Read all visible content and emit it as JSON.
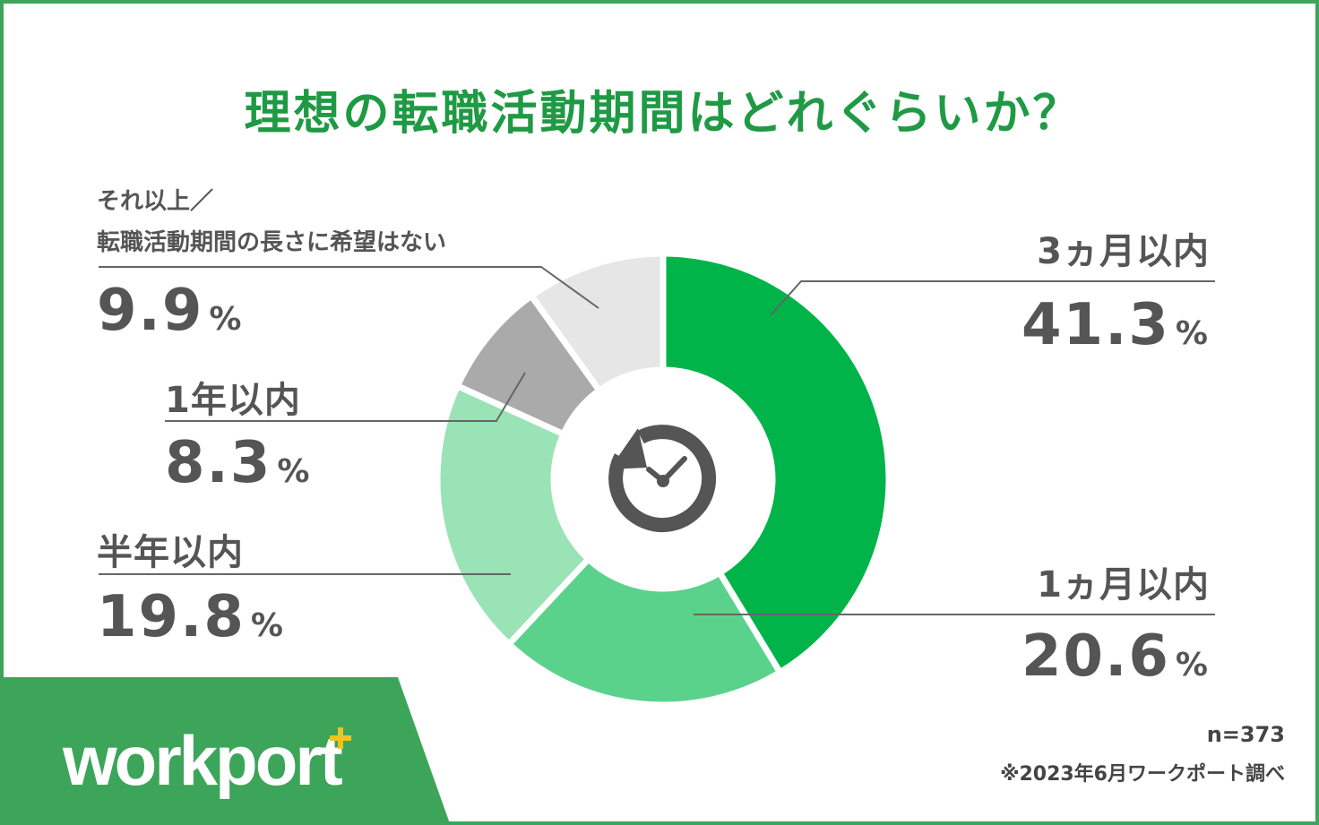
{
  "title": "理想の転職活動期間はどれぐらいか？",
  "chart_data": {
    "type": "pie",
    "variant": "donut",
    "title": "理想の転職活動期間はどれぐらいか？",
    "categories": [
      "3ヵ月以内",
      "1ヵ月以内",
      "半年以内",
      "1年以内",
      "それ以上／転職活動期間の長さに希望はない"
    ],
    "values": [
      41.3,
      20.6,
      19.8,
      8.3,
      9.9
    ],
    "unit": "%",
    "colors": [
      "#00b44a",
      "#5ad28c",
      "#9ae3b6",
      "#aaaaaa",
      "#e6e6e6"
    ],
    "center_icon": "clock-with-arrow-icon",
    "legend": "none"
  },
  "labels": {
    "s0": {
      "head": "3ヵ月以内",
      "value": "41.3",
      "pct": "%"
    },
    "s1": {
      "head": "1ヵ月以内",
      "value": "20.6",
      "pct": "%"
    },
    "s2": {
      "head": "半年以内",
      "value": "19.8",
      "pct": "%"
    },
    "s3": {
      "head": "1年以内",
      "value": "8.3",
      "pct": "%"
    },
    "s4": {
      "head_line1": "それ以上／",
      "head_line2": "転職活動期間の長さに希望はない",
      "value": "9.9",
      "pct": "%"
    }
  },
  "footer": {
    "sample": "n=373",
    "source": "※2023年6月ワークポート調べ"
  },
  "logo": {
    "text": "workport",
    "accent_color": "#f2c224",
    "brand_color": "#3da55a"
  }
}
